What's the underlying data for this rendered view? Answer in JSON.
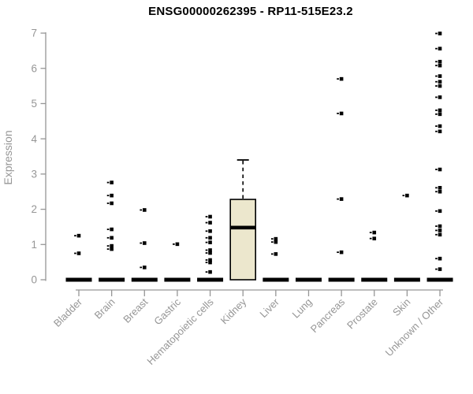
{
  "title": "ENSG00000262395 - RP11-515E23.2",
  "chart_data": {
    "type": "boxplot",
    "title": "ENSG00000262395 - RP11-515E23.2",
    "xlabel": "",
    "ylabel": "Expression",
    "ylim": [
      0,
      7
    ],
    "yticks": [
      0,
      1,
      2,
      3,
      4,
      5,
      6,
      7
    ],
    "grid": false,
    "legend": "none",
    "categories": [
      "Bladder",
      "Brain",
      "Breast",
      "Gastric",
      "Hematopoietic cells",
      "Kidney",
      "Liver",
      "Lung",
      "Pancreas",
      "Prostate",
      "Skin",
      "Unknown / Other"
    ],
    "groups": [
      {
        "category": "Bladder",
        "q1": 0,
        "median": 0,
        "q3": 0,
        "whisker_low": 0,
        "whisker_high": 0,
        "outliers": [
          1.25,
          0.75
        ]
      },
      {
        "category": "Brain",
        "q1": 0,
        "median": 0,
        "q3": 0,
        "whisker_low": 0,
        "whisker_high": 0,
        "outliers": [
          2.76,
          2.39,
          2.17,
          1.43,
          1.19,
          0.96,
          0.87
        ]
      },
      {
        "category": "Breast",
        "q1": 0,
        "median": 0,
        "q3": 0,
        "whisker_low": 0,
        "whisker_high": 0,
        "outliers": [
          1.98,
          1.04,
          0.35
        ]
      },
      {
        "category": "Gastric",
        "q1": 0,
        "median": 0,
        "q3": 0,
        "whisker_low": 0,
        "whisker_high": 0,
        "outliers": [
          1.01
        ]
      },
      {
        "category": "Hematopoietic cells",
        "q1": 0,
        "median": 0,
        "q3": 0,
        "whisker_low": 0,
        "whisker_high": 0,
        "outliers": [
          1.79,
          1.62,
          1.38,
          1.19,
          1.06,
          0.84,
          0.76,
          0.56,
          0.49,
          0.22
        ]
      },
      {
        "category": "Kidney",
        "q1": 0,
        "median": 1.48,
        "q3": 2.28,
        "whisker_low": 0,
        "whisker_high": 3.4,
        "outliers": []
      },
      {
        "category": "Liver",
        "q1": 0,
        "median": 0,
        "q3": 0,
        "whisker_low": 0,
        "whisker_high": 0,
        "outliers": [
          1.16,
          1.07,
          0.73
        ]
      },
      {
        "category": "Lung",
        "q1": 0,
        "median": 0,
        "q3": 0,
        "whisker_low": 0,
        "whisker_high": 0,
        "outliers": []
      },
      {
        "category": "Pancreas",
        "q1": 0,
        "median": 0,
        "q3": 0,
        "whisker_low": 0,
        "whisker_high": 0,
        "outliers": [
          5.7,
          4.72,
          2.29,
          0.78
        ]
      },
      {
        "category": "Prostate",
        "q1": 0,
        "median": 0,
        "q3": 0,
        "whisker_low": 0,
        "whisker_high": 0,
        "outliers": [
          1.34,
          1.17
        ]
      },
      {
        "category": "Skin",
        "q1": 0,
        "median": 0,
        "q3": 0,
        "whisker_low": 0,
        "whisker_high": 0,
        "outliers": [
          2.39
        ]
      },
      {
        "category": "Unknown / Other",
        "q1": 0,
        "median": 0,
        "q3": 0,
        "whisker_low": 0,
        "whisker_high": 0,
        "outliers": [
          6.99,
          6.56,
          6.19,
          6.08,
          5.78,
          5.62,
          5.5,
          5.18,
          4.81,
          4.7,
          4.36,
          4.21,
          3.13,
          2.61,
          2.5,
          1.95,
          1.52,
          1.4,
          1.28,
          0.6,
          0.3
        ]
      }
    ],
    "colors": {
      "box_fill": "#ece7cd",
      "box_border": "#000000",
      "median": "#000000",
      "zero_bar": "#000000",
      "outlier": "#000000",
      "axis": "#969696",
      "title": "#000000"
    }
  }
}
